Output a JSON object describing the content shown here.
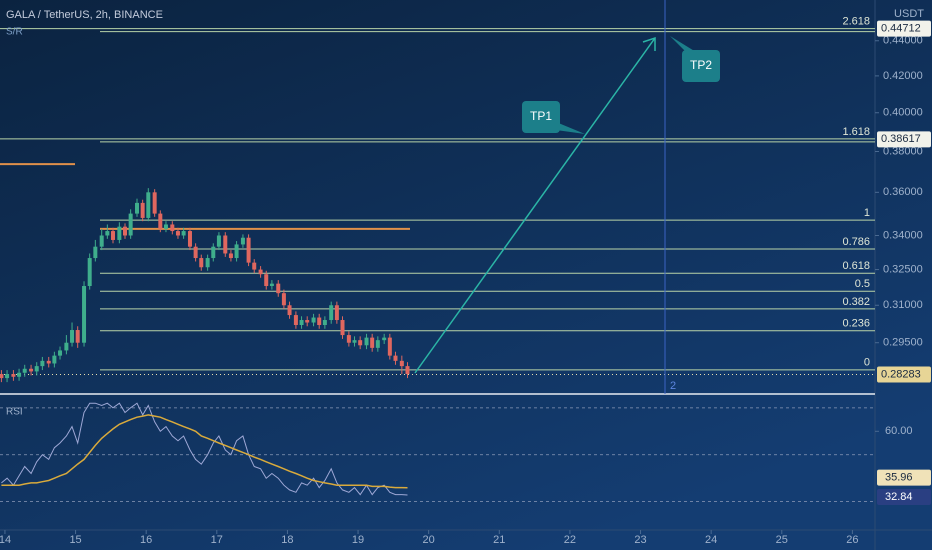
{
  "chart_data": {
    "type": "candlestick",
    "title": "GALA / TetherUS, 2h, BINANCE",
    "indicator_label": "S/R",
    "currency": "USDT",
    "x": [
      13.95,
      14.03,
      14.12,
      14.2,
      14.28,
      14.37,
      14.45,
      14.53,
      14.62,
      14.7,
      14.78,
      14.87,
      14.95,
      15.03,
      15.12,
      15.2,
      15.28,
      15.37,
      15.45,
      15.53,
      15.62,
      15.7,
      15.78,
      15.87,
      15.95,
      16.03,
      16.12,
      16.2,
      16.28,
      16.37,
      16.45,
      16.53,
      16.62,
      16.7,
      16.78,
      16.87,
      16.95,
      17.03,
      17.12,
      17.2,
      17.28,
      17.37,
      17.45,
      17.53,
      17.62,
      17.7,
      17.78,
      17.87,
      17.95,
      18.03,
      18.12,
      18.2,
      18.28,
      18.37,
      18.45,
      18.53,
      18.62,
      18.7,
      18.78,
      18.87,
      18.95,
      19.03,
      19.12,
      19.2,
      19.28,
      19.37,
      19.45,
      19.53,
      19.62,
      19.7
    ],
    "open": [
      0.283,
      0.2815,
      0.283,
      0.282,
      0.2835,
      0.285,
      0.284,
      0.286,
      0.288,
      0.287,
      0.29,
      0.292,
      0.295,
      0.3,
      0.295,
      0.318,
      0.33,
      0.335,
      0.34,
      0.342,
      0.338,
      0.344,
      0.34,
      0.35,
      0.355,
      0.348,
      0.36,
      0.35,
      0.343,
      0.345,
      0.342,
      0.34,
      0.342,
      0.335,
      0.33,
      0.326,
      0.33,
      0.335,
      0.34,
      0.332,
      0.33,
      0.336,
      0.339,
      0.328,
      0.325,
      0.323,
      0.318,
      0.319,
      0.315,
      0.31,
      0.306,
      0.302,
      0.304,
      0.303,
      0.305,
      0.302,
      0.304,
      0.31,
      0.304,
      0.298,
      0.295,
      0.296,
      0.294,
      0.297,
      0.293,
      0.296,
      0.297,
      0.29,
      0.288,
      0.286
    ],
    "high": [
      0.2845,
      0.2845,
      0.2845,
      0.285,
      0.2865,
      0.2865,
      0.2875,
      0.2895,
      0.2895,
      0.2915,
      0.2935,
      0.298,
      0.303,
      0.3015,
      0.32,
      0.332,
      0.338,
      0.343,
      0.345,
      0.3435,
      0.346,
      0.3455,
      0.352,
      0.357,
      0.3565,
      0.362,
      0.3615,
      0.3515,
      0.3465,
      0.3465,
      0.3435,
      0.3435,
      0.3435,
      0.3365,
      0.3315,
      0.3315,
      0.3365,
      0.3415,
      0.3415,
      0.3335,
      0.3375,
      0.3405,
      0.3405,
      0.3295,
      0.3265,
      0.3245,
      0.3205,
      0.3205,
      0.3165,
      0.3115,
      0.3075,
      0.3055,
      0.3055,
      0.3065,
      0.3065,
      0.3055,
      0.3115,
      0.3115,
      0.3055,
      0.2995,
      0.2975,
      0.2975,
      0.2985,
      0.2985,
      0.2975,
      0.2985,
      0.2985,
      0.2915,
      0.29,
      0.2875
    ],
    "low": [
      0.28,
      0.28,
      0.2805,
      0.2805,
      0.282,
      0.2825,
      0.2825,
      0.2845,
      0.2855,
      0.2855,
      0.2885,
      0.2905,
      0.2935,
      0.293,
      0.2935,
      0.3165,
      0.3285,
      0.3335,
      0.3385,
      0.3365,
      0.3365,
      0.3385,
      0.3385,
      0.3485,
      0.3465,
      0.3465,
      0.3485,
      0.3415,
      0.3415,
      0.3405,
      0.3385,
      0.3385,
      0.3335,
      0.3285,
      0.3245,
      0.3245,
      0.3285,
      0.3335,
      0.3305,
      0.3285,
      0.3285,
      0.3345,
      0.3265,
      0.3235,
      0.3215,
      0.3165,
      0.3165,
      0.3135,
      0.3085,
      0.3045,
      0.3005,
      0.3005,
      0.3015,
      0.3015,
      0.3005,
      0.3005,
      0.3025,
      0.3025,
      0.2965,
      0.2935,
      0.2935,
      0.2925,
      0.2925,
      0.2915,
      0.2915,
      0.2945,
      0.2885,
      0.2865,
      0.283,
      0.2815
    ],
    "close": [
      0.2815,
      0.283,
      0.282,
      0.2835,
      0.285,
      0.284,
      0.286,
      0.288,
      0.287,
      0.29,
      0.292,
      0.295,
      0.3,
      0.295,
      0.318,
      0.33,
      0.335,
      0.34,
      0.342,
      0.338,
      0.344,
      0.34,
      0.35,
      0.355,
      0.348,
      0.36,
      0.35,
      0.343,
      0.345,
      0.342,
      0.34,
      0.342,
      0.335,
      0.33,
      0.326,
      0.33,
      0.335,
      0.34,
      0.332,
      0.33,
      0.336,
      0.339,
      0.328,
      0.325,
      0.323,
      0.318,
      0.319,
      0.315,
      0.31,
      0.306,
      0.302,
      0.304,
      0.303,
      0.305,
      0.302,
      0.304,
      0.31,
      0.304,
      0.298,
      0.295,
      0.296,
      0.294,
      0.297,
      0.293,
      0.296,
      0.297,
      0.29,
      0.288,
      0.286,
      0.283
    ],
    "up_color": "#3fae8c",
    "down_color": "#e0675f",
    "xlim": [
      13.93,
      26.32
    ],
    "xticks": [
      14,
      15,
      16,
      17,
      18,
      19,
      20,
      21,
      22,
      23,
      24,
      25,
      26
    ],
    "ylim": [
      0.276,
      0.4644
    ],
    "log_scale": true,
    "yticks": [
      {
        "value": 0.44,
        "label": "0.44000"
      },
      {
        "value": 0.42,
        "label": "0.42000"
      },
      {
        "value": 0.4,
        "label": "0.40000"
      },
      {
        "value": 0.38,
        "label": "0.38000"
      },
      {
        "value": 0.36,
        "label": "0.36000"
      },
      {
        "value": 0.34,
        "label": "0.34000"
      },
      {
        "value": 0.325,
        "label": "0.32500"
      },
      {
        "value": 0.31,
        "label": "0.31000"
      },
      {
        "value": 0.295,
        "label": "0.29500"
      }
    ],
    "current_price": 0.28283,
    "price_labels": [
      0.44712,
      0.38617
    ],
    "fib": {
      "levels": [
        2.618,
        1.618,
        1,
        0.786,
        0.618,
        0.5,
        0.382,
        0.236,
        0
      ],
      "prices": [
        0.4471,
        0.3864,
        0.347,
        0.334,
        0.3234,
        0.3158,
        0.3085,
        0.2997,
        0.2846
      ],
      "color": "#b9d4a8"
    },
    "sr_lines": {
      "prices": [
        0.3737,
        0.343
      ],
      "color": "#e0904a"
    },
    "arrow_color": "#2bb5a6",
    "annotations": [
      "TP1",
      "TP2"
    ],
    "marker_label": "2",
    "rsi": {
      "title": "RSI",
      "values": [
        38,
        40,
        37,
        41,
        45,
        42,
        47,
        50,
        48,
        53,
        55,
        58,
        62,
        55,
        68,
        72,
        72,
        71,
        72,
        70,
        72,
        68,
        70,
        72,
        67,
        71,
        64,
        60,
        62,
        58,
        56,
        58,
        52,
        48,
        46,
        50,
        55,
        58,
        52,
        50,
        56,
        58,
        50,
        45,
        44,
        40,
        42,
        40,
        37,
        35,
        34,
        38,
        37,
        40,
        36,
        39,
        44,
        38,
        35,
        34,
        36,
        33,
        37,
        33,
        36,
        37,
        34,
        33,
        33,
        32.84
      ],
      "ma": [
        37,
        37,
        37,
        37,
        37.5,
        38,
        38,
        38.5,
        39,
        40,
        41,
        42,
        44,
        46,
        48,
        51,
        54,
        57,
        59,
        61,
        63,
        64,
        65,
        66,
        66.5,
        67,
        66.5,
        66,
        65,
        64,
        63,
        62,
        61,
        60,
        58,
        57,
        56,
        55,
        54,
        53,
        52,
        51,
        50,
        49,
        48,
        47,
        46,
        45,
        44,
        43,
        42,
        41,
        40,
        39,
        38.5,
        38,
        37.5,
        37,
        37,
        37,
        37,
        37,
        37,
        36.5,
        36.5,
        36.5,
        36.2,
        36,
        36,
        35.96
      ],
      "color": "#9ea8d6",
      "ma_color": "#d9aa3c",
      "ylim": [
        17.9,
        74.2
      ],
      "yticks": [
        {
          "value": 60,
          "label": "60.00"
        }
      ],
      "levels": [
        70,
        50,
        30
      ]
    }
  }
}
